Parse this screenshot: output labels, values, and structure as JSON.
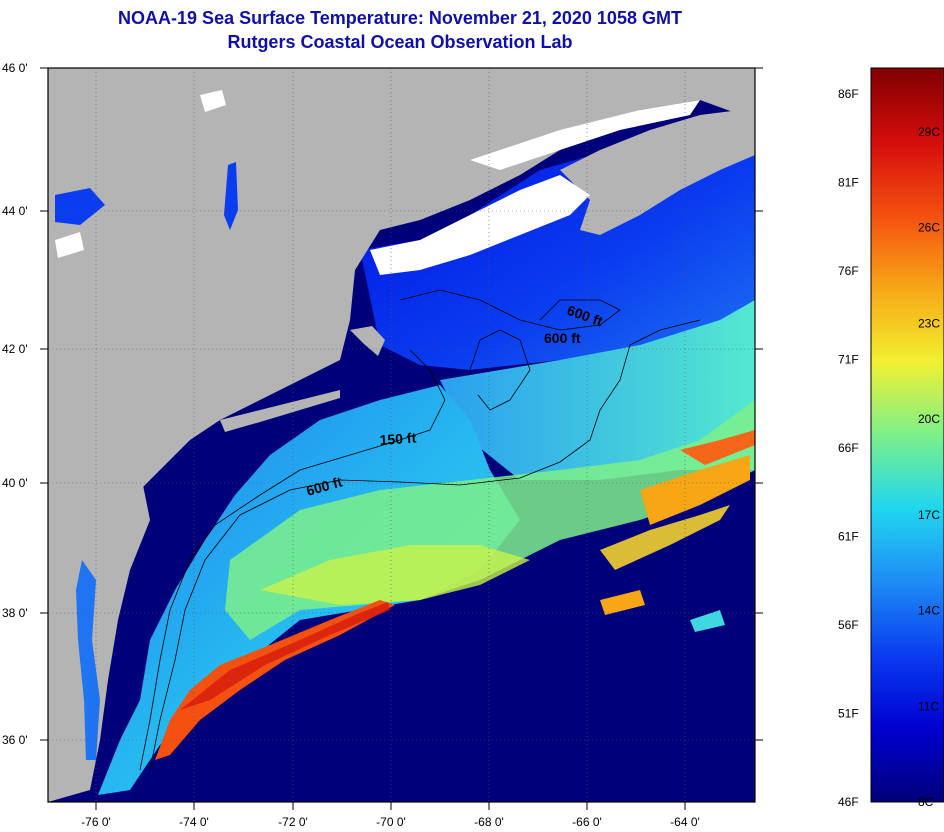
{
  "header": {
    "title": "NOAA-19 Sea Surface Temperature:  November 21, 2020 1058 GMT",
    "subtitle": "Rutgers Coastal Ocean Observation Lab"
  },
  "axes": {
    "latitude_labels": [
      "46 0'",
      "44 0'",
      "42 0'",
      "40 0'",
      "38 0'",
      "36 0'"
    ],
    "longitude_labels": [
      "-76 0'",
      "-74 0'",
      "-72 0'",
      "-70 0'",
      "-68 0'",
      "-66 0'",
      "-64 0'"
    ]
  },
  "contours": {
    "labels": [
      "600 ft",
      "600 ft",
      "150 ft",
      "600 ft"
    ]
  },
  "colorbar": {
    "fahrenheit": [
      "86F",
      "81F",
      "76F",
      "71F",
      "66F",
      "61F",
      "56F",
      "51F",
      "46F"
    ],
    "celsius": [
      "29C",
      "26C",
      "23C",
      "20C",
      "17C",
      "14C",
      "11C",
      "8C"
    ],
    "gradient_colors": [
      "#00007a",
      "#0000d0",
      "#0a3cf0",
      "#1f8cf5",
      "#20d6ee",
      "#7cf08a",
      "#f2f030",
      "#f7a616",
      "#f45010",
      "#d40c0c",
      "#800000"
    ]
  },
  "colors": {
    "land": "#b4b4b4",
    "ocean_deep": "#00007a",
    "title": "#1010a8"
  }
}
